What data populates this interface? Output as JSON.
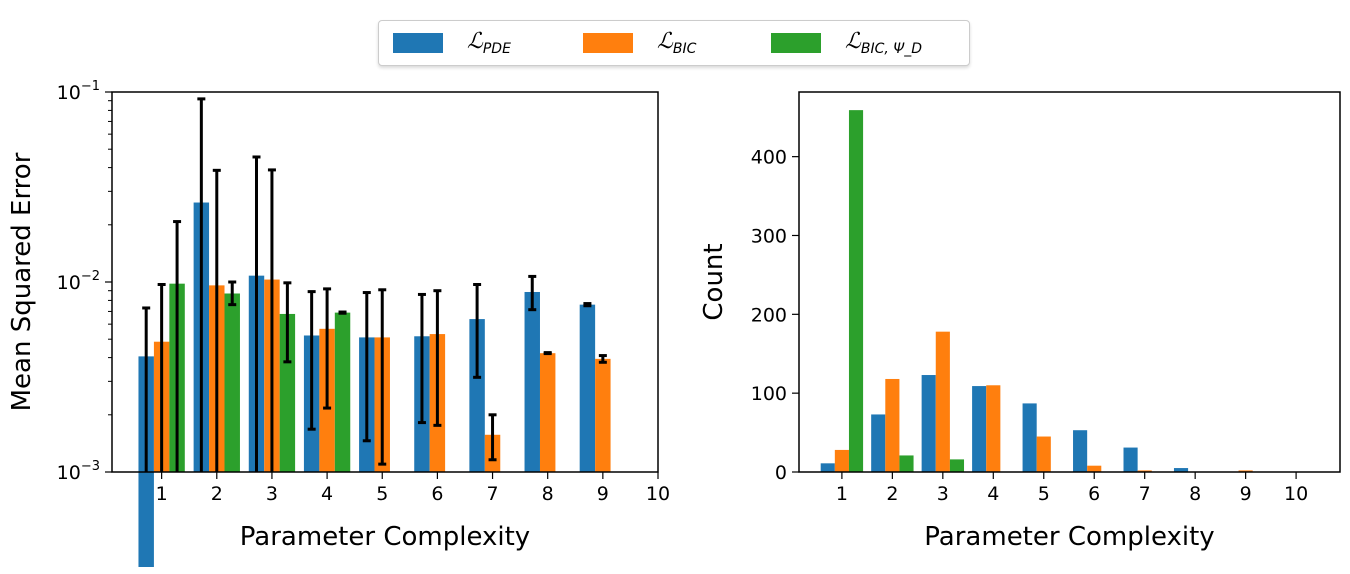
{
  "legend": {
    "placement": "top-center",
    "items": [
      {
        "symbol": "ℒ",
        "sub": "PDE",
        "color": "#1f77b4"
      },
      {
        "symbol": "ℒ",
        "sub": "BIC",
        "color": "#ff7f0e"
      },
      {
        "symbol": "ℒ",
        "sub": "BIC, Ψ_D",
        "color": "#2ca02c"
      }
    ]
  },
  "chart_data": [
    {
      "type": "bar",
      "xlabel": "Parameter Complexity",
      "ylabel": "Mean Squared Error",
      "yscale": "log",
      "ylim": [
        0.001,
        0.1
      ],
      "xlim": [
        0.1,
        10
      ],
      "xticks": [
        "1",
        "2",
        "3",
        "4",
        "5",
        "6",
        "7",
        "8",
        "9",
        "10"
      ],
      "yticks": [
        {
          "base": "10",
          "exp": "−3",
          "value": 0.001
        },
        {
          "base": "10",
          "exp": "−2",
          "value": 0.01
        },
        {
          "base": "10",
          "exp": "−1",
          "value": 0.1
        }
      ],
      "grid": false,
      "categories": [
        1,
        2,
        3,
        4,
        5,
        6,
        7,
        8,
        9
      ],
      "series": [
        {
          "legend_index": 0,
          "values": [
            0.00406,
            0.0262,
            0.0108,
            0.00523,
            0.00511,
            0.00518,
            0.00638,
            0.00886,
            0.0076
          ],
          "err_high": [
            0.0073,
            0.092,
            0.0455,
            0.0089,
            0.0088,
            0.0086,
            0.0097,
            0.0107,
            0.0077
          ],
          "err_low": [
            null,
            null,
            null,
            0.00168,
            0.00146,
            0.00182,
            0.00315,
            0.00715,
            0.0075
          ]
        },
        {
          "legend_index": 1,
          "values": [
            0.00485,
            0.0096,
            0.0103,
            0.00567,
            0.00511,
            0.00532,
            0.00157,
            0.00422,
            0.00394
          ],
          "err_high": [
            0.0097,
            0.0387,
            0.0389,
            0.0092,
            0.0091,
            0.009,
            0.002,
            0.00425,
            0.0041
          ],
          "err_low": [
            null,
            null,
            null,
            0.00217,
            0.0011,
            0.00176,
            0.00116,
            0.0042,
            0.00378
          ]
        },
        {
          "legend_index": 2,
          "values": [
            0.0098,
            0.0087,
            0.00679,
            0.0069,
            null,
            null,
            null,
            null,
            null
          ],
          "err_high": [
            0.0208,
            0.01,
            0.0099,
            0.00695,
            null,
            null,
            null,
            null,
            null
          ],
          "err_low": [
            null,
            0.0076,
            0.0038,
            0.00685,
            null,
            null,
            null,
            null,
            null
          ]
        }
      ]
    },
    {
      "type": "bar",
      "xlabel": "Parameter Complexity",
      "ylabel": "Count",
      "ylim": [
        0,
        482
      ],
      "xlim": [
        0.15,
        10.87
      ],
      "xticks": [
        "1",
        "2",
        "3",
        "4",
        "5",
        "6",
        "7",
        "8",
        "9",
        "10"
      ],
      "yticks": [
        "0",
        "100",
        "200",
        "300",
        "400"
      ],
      "grid": false,
      "categories": [
        1,
        2,
        3,
        4,
        5,
        6,
        7,
        8,
        9,
        10
      ],
      "series": [
        {
          "legend_index": 0,
          "values": [
            11,
            73,
            123,
            109,
            87,
            53,
            31,
            5,
            0,
            0
          ]
        },
        {
          "legend_index": 1,
          "values": [
            28,
            118,
            178,
            110,
            45,
            8,
            2,
            0,
            2,
            0
          ]
        },
        {
          "legend_index": 2,
          "values": [
            459,
            21,
            16,
            0,
            0,
            0,
            0,
            0,
            0,
            0
          ]
        }
      ]
    }
  ]
}
